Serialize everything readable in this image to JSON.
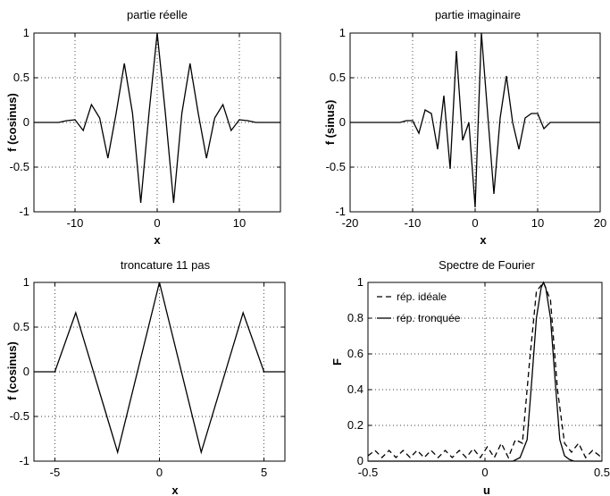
{
  "chart_data": [
    {
      "type": "line",
      "title": "partie réelle",
      "xlabel": "x",
      "ylabel": "f (cosinus)",
      "xlim": [
        -15,
        15
      ],
      "ylim": [
        -1,
        1
      ],
      "xticks": [
        -10,
        0,
        10
      ],
      "xtick_labels": [
        "-10",
        "0",
        "10"
      ],
      "yticks": [
        -1,
        -0.5,
        0,
        0.5,
        1
      ],
      "ytick_labels": [
        "-1",
        "-0.5",
        "0",
        "0.5",
        "1"
      ],
      "grid": true,
      "series": [
        {
          "x": [
            -15,
            -12,
            -11,
            -10,
            -9,
            -8,
            -7,
            -6,
            -5,
            -4,
            -3,
            -2,
            -1,
            0,
            1,
            2,
            3,
            4,
            5,
            6,
            7,
            8,
            9,
            10,
            11,
            12,
            15
          ],
          "y": [
            0,
            0,
            0.02,
            0.03,
            -0.09,
            0.2,
            0.05,
            -0.4,
            0.1,
            0.66,
            0.1,
            -0.9,
            0.1,
            1,
            0.1,
            -0.9,
            0.1,
            0.66,
            0.1,
            -0.4,
            0.05,
            0.2,
            -0.09,
            0.03,
            0.02,
            0,
            0
          ]
        }
      ]
    },
    {
      "type": "line",
      "title": "partie imaginaire",
      "xlabel": "x",
      "ylabel": "f (sinus)",
      "xlim": [
        -20,
        20
      ],
      "ylim": [
        -1,
        1
      ],
      "xticks": [
        -20,
        -10,
        0,
        10,
        20
      ],
      "xtick_labels": [
        "-20",
        "-10",
        "0",
        "10",
        "20"
      ],
      "yticks": [
        -1,
        -0.5,
        0,
        0.5,
        1
      ],
      "ytick_labels": [
        "-1",
        "-0.5",
        "0",
        "0.5",
        "1"
      ],
      "grid": true,
      "series": [
        {
          "x": [
            -20,
            -12,
            -11,
            -10,
            -9,
            -8,
            -7,
            -6,
            -5,
            -4,
            -3,
            -2,
            -1,
            0,
            1,
            2,
            3,
            4,
            5,
            6,
            7,
            8,
            9,
            10,
            11,
            12,
            20
          ],
          "y": [
            0,
            0,
            0.02,
            0.02,
            -0.12,
            0.14,
            0.1,
            -0.3,
            0.3,
            -0.52,
            0.8,
            -0.2,
            0.0,
            -0.95,
            1,
            0.1,
            -0.8,
            0.05,
            0.52,
            0.0,
            -0.3,
            0.05,
            0.1,
            0.1,
            -0.07,
            0,
            0
          ]
        }
      ]
    },
    {
      "type": "line",
      "title": "troncature 11 pas",
      "xlabel": "x",
      "ylabel": "f (cosinus)",
      "xlim": [
        -6,
        6
      ],
      "ylim": [
        -1,
        1
      ],
      "xticks": [
        -5,
        0,
        5
      ],
      "xtick_labels": [
        "-5",
        "0",
        "5"
      ],
      "yticks": [
        -1,
        -0.5,
        0,
        0.5,
        1
      ],
      "ytick_labels": [
        "-1",
        "-0.5",
        "0",
        "0.5",
        "1"
      ],
      "grid": true,
      "series": [
        {
          "x": [
            -6,
            -5,
            -4,
            -2,
            0,
            2,
            4,
            5,
            6
          ],
          "y": [
            0,
            0,
            0.66,
            -0.9,
            1,
            -0.9,
            0.66,
            0,
            0
          ]
        }
      ]
    },
    {
      "type": "line",
      "title": "Spectre de Fourier",
      "xlabel": "u",
      "ylabel": "F",
      "xlim": [
        -0.5,
        0.5
      ],
      "ylim": [
        0,
        1
      ],
      "xticks": [
        -0.5,
        0,
        0.5
      ],
      "xtick_labels": [
        "-0.5",
        "0",
        "0.5"
      ],
      "yticks": [
        0,
        0.2,
        0.4,
        0.6,
        0.8,
        1
      ],
      "ytick_labels": [
        "0",
        "0.2",
        "0.4",
        "0.6",
        "0.8",
        "1"
      ],
      "grid": true,
      "legend": "top-left",
      "series": [
        {
          "name": "rép. idéale",
          "style": "dashed",
          "x": [
            -0.5,
            -0.47,
            -0.44,
            -0.41,
            -0.38,
            -0.35,
            -0.32,
            -0.29,
            -0.26,
            -0.23,
            -0.2,
            -0.17,
            -0.14,
            -0.11,
            -0.08,
            -0.05,
            -0.02,
            0.01,
            0.04,
            0.07,
            0.1,
            0.13,
            0.16,
            0.19,
            0.22,
            0.25,
            0.28,
            0.31,
            0.34,
            0.37,
            0.4,
            0.43,
            0.46,
            0.49,
            0.5
          ],
          "y": [
            0.03,
            0.06,
            0.02,
            0.06,
            0.02,
            0.06,
            0.02,
            0.06,
            0.02,
            0.06,
            0.02,
            0.06,
            0.02,
            0.06,
            0.02,
            0.07,
            0.02,
            0.08,
            0.02,
            0.1,
            0.02,
            0.12,
            0.1,
            0.55,
            0.95,
            1,
            0.9,
            0.4,
            0.1,
            0.05,
            0.1,
            0.02,
            0.06,
            0.03,
            0.05
          ]
        },
        {
          "name": "rép. tronquée",
          "style": "solid",
          "x": [
            -0.5,
            0.12,
            0.15,
            0.18,
            0.2,
            0.22,
            0.24,
            0.25,
            0.26,
            0.28,
            0.3,
            0.32,
            0.34,
            0.36,
            0.38,
            0.5
          ],
          "y": [
            0,
            0,
            0.02,
            0.12,
            0.45,
            0.8,
            0.97,
            1,
            0.97,
            0.8,
            0.45,
            0.12,
            0.03,
            0.01,
            0,
            0
          ]
        }
      ]
    }
  ]
}
